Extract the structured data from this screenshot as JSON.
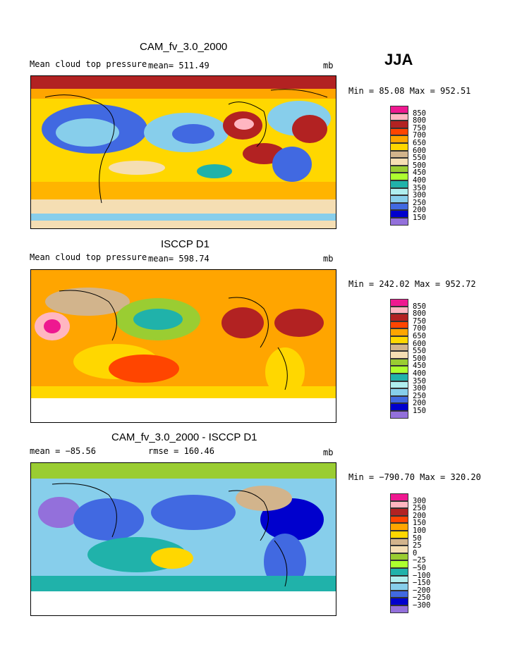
{
  "season": "JJA",
  "panels": [
    {
      "id": "model",
      "title": "CAM_fv_3.0_2000",
      "subtitle_left": "Mean cloud top pressure",
      "mean": "mean= 511.49",
      "units": "mb",
      "minmax": "Min =  85.08 Max = 952.51",
      "legend_labels": [
        "850",
        "800",
        "750",
        "700",
        "650",
        "600",
        "550",
        "500",
        "450",
        "400",
        "350",
        "300",
        "250",
        "200",
        "150"
      ]
    },
    {
      "id": "obs",
      "title": "ISCCP D1",
      "subtitle_left": "Mean cloud top pressure",
      "mean": "mean= 598.74",
      "units": "mb",
      "minmax": "Min = 242.02 Max = 952.72",
      "legend_labels": [
        "850",
        "800",
        "750",
        "700",
        "650",
        "600",
        "550",
        "500",
        "450",
        "400",
        "350",
        "300",
        "250",
        "200",
        "150"
      ]
    },
    {
      "id": "diff",
      "title": "CAM_fv_3.0_2000 - ISCCP D1",
      "subtitle_left": "mean = −85.56",
      "mean": "rmse = 160.46",
      "units": "mb",
      "minmax": "Min = −790.70 Max = 320.20",
      "legend_labels": [
        "300",
        "250",
        "200",
        "150",
        "100",
        "50",
        "25",
        "0",
        "−25",
        "−50",
        "−100",
        "−150",
        "−200",
        "−250",
        "−300"
      ]
    }
  ],
  "colors": [
    "#ee1890",
    "#ffb6c1",
    "#b22222",
    "#ff4500",
    "#ffa500",
    "#ffd700",
    "#d2b48c",
    "#f5deb3",
    "#9acd32",
    "#adff2f",
    "#20b2aa",
    "#afeeee",
    "#87ceeb",
    "#4169e1",
    "#0000cd",
    "#9370db"
  ]
}
